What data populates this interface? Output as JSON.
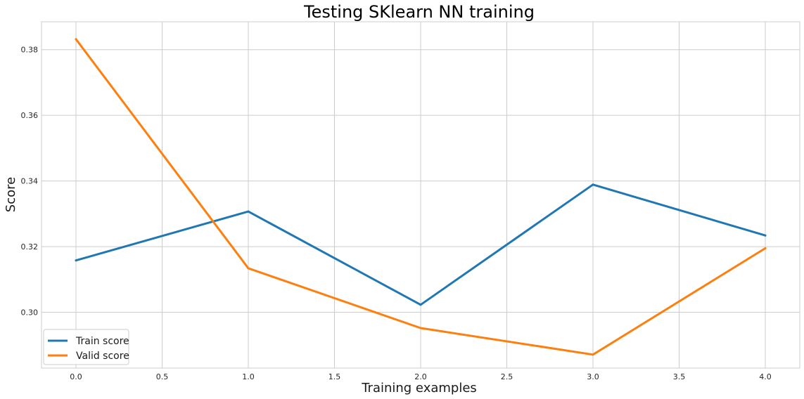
{
  "chart_data": {
    "type": "line",
    "title": "Testing SKlearn NN training",
    "xlabel": "Training examples",
    "ylabel": "Score",
    "x": [
      0,
      1,
      2,
      3,
      4
    ],
    "xlim": [
      -0.2,
      4.2
    ],
    "ylim": [
      0.283,
      0.3885
    ],
    "xticks": [
      0.0,
      0.5,
      1.0,
      1.5,
      2.0,
      2.5,
      3.0,
      3.5,
      4.0
    ],
    "xtick_labels": [
      "0.0",
      "0.5",
      "1.0",
      "1.5",
      "2.0",
      "2.5",
      "3.0",
      "3.5",
      "4.0"
    ],
    "yticks": [
      0.3,
      0.32,
      0.34,
      0.36,
      0.38
    ],
    "ytick_labels": [
      "0.30",
      "0.32",
      "0.34",
      "0.36",
      "0.38"
    ],
    "grid": true,
    "legend_position": "lower-left",
    "series": [
      {
        "name": "Train score",
        "color": "#1f77b4",
        "values": [
          0.3158,
          0.3307,
          0.3023,
          0.3389,
          0.3234
        ]
      },
      {
        "name": "Valid score",
        "color": "#ff7f0e",
        "values": [
          0.3832,
          0.3134,
          0.2952,
          0.2871,
          0.3195
        ]
      }
    ]
  }
}
